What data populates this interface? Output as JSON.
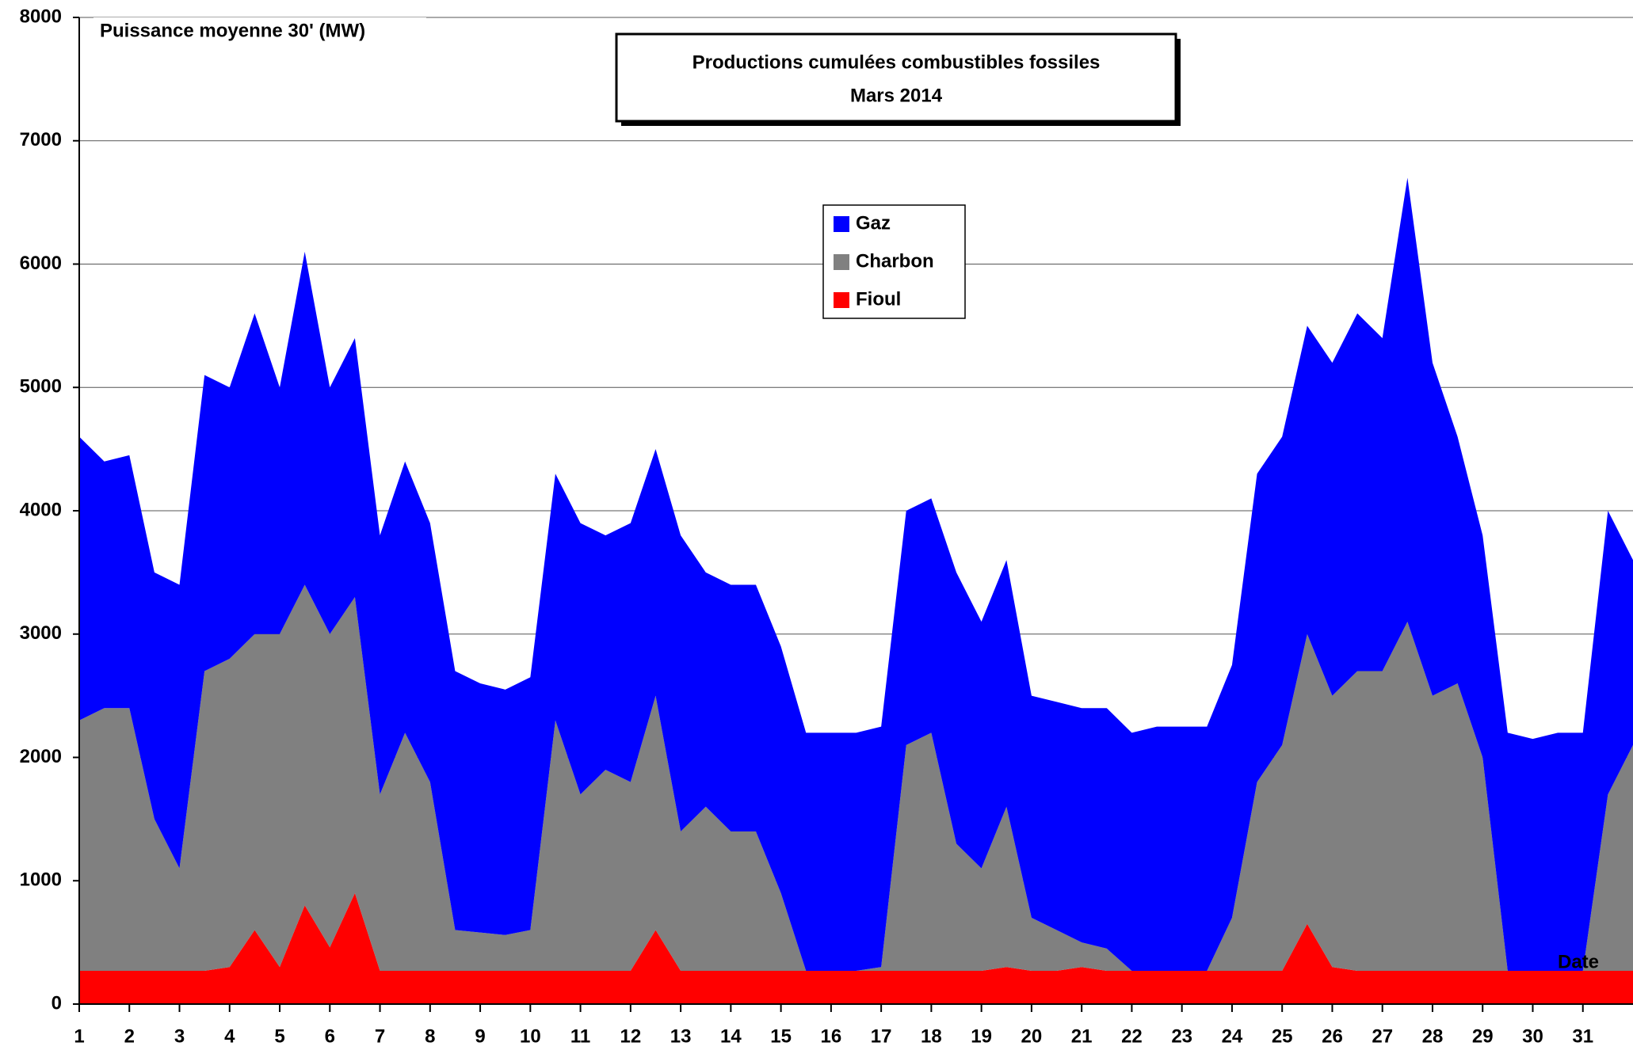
{
  "chart_data": {
    "type": "stacked_area",
    "title": [
      "Productions cumulées combustibles fossiles",
      "Mars 2014"
    ],
    "y_label": "Puissance moyenne 30' (MW)",
    "x_label": "Date",
    "x": [
      1,
      1.5,
      2,
      2.5,
      3,
      3.5,
      4,
      4.5,
      5,
      5.5,
      6,
      6.5,
      7,
      7.5,
      8,
      8.5,
      9,
      9.5,
      10,
      10.5,
      11,
      11.5,
      12,
      12.5,
      13,
      13.5,
      14,
      14.5,
      15,
      15.5,
      16,
      16.5,
      17,
      17.5,
      18,
      18.5,
      19,
      19.5,
      20,
      20.5,
      21,
      21.5,
      22,
      22.5,
      23,
      23.5,
      24,
      24.5,
      25,
      25.5,
      26,
      26.5,
      27,
      27.5,
      28,
      28.5,
      29,
      29.5,
      30,
      30.5,
      31,
      31.5,
      32
    ],
    "series": [
      {
        "name": "Fioul",
        "color": "#ff0000",
        "values": [
          270,
          270,
          270,
          270,
          270,
          270,
          300,
          600,
          300,
          800,
          460,
          900,
          270,
          270,
          270,
          270,
          270,
          270,
          270,
          270,
          270,
          270,
          270,
          600,
          270,
          270,
          270,
          270,
          270,
          270,
          270,
          270,
          270,
          270,
          270,
          270,
          270,
          300,
          270,
          270,
          300,
          270,
          270,
          270,
          270,
          270,
          270,
          270,
          270,
          650,
          300,
          270,
          270,
          270,
          270,
          270,
          270,
          270,
          270,
          270,
          270,
          270,
          270
        ]
      },
      {
        "name": "Charbon",
        "color": "#808080",
        "values": [
          2030,
          2130,
          2130,
          1230,
          830,
          2430,
          2500,
          2400,
          2700,
          2600,
          2540,
          2400,
          1430,
          1930,
          1530,
          330,
          310,
          290,
          330,
          2030,
          1430,
          1630,
          1530,
          1900,
          1130,
          1330,
          1130,
          1130,
          630,
          0,
          0,
          0,
          30,
          1830,
          1930,
          1030,
          830,
          1300,
          430,
          330,
          200,
          180,
          0,
          0,
          0,
          0,
          430,
          1530,
          1830,
          2350,
          2200,
          2430,
          2430,
          2830,
          2230,
          2330,
          1730,
          0,
          0,
          0,
          0,
          1430,
          1830
        ]
      },
      {
        "name": "Gaz",
        "color": "#0000ff",
        "values": [
          2300,
          2000,
          2050,
          2000,
          2300,
          2400,
          2200,
          2600,
          2000,
          2700,
          2000,
          2100,
          2100,
          2200,
          2100,
          2100,
          2020,
          1990,
          2050,
          2000,
          2200,
          1900,
          2100,
          2000,
          2400,
          1900,
          2000,
          2000,
          2000,
          1930,
          1930,
          1930,
          1950,
          1900,
          1900,
          2200,
          2000,
          2000,
          1800,
          1850,
          1900,
          1950,
          1930,
          1980,
          1980,
          1980,
          2050,
          2500,
          2500,
          2500,
          2700,
          2900,
          2700,
          3600,
          2700,
          2000,
          1800,
          1930,
          1880,
          1930,
          1930,
          2300,
          1500
        ]
      }
    ],
    "xlim": [
      1,
      32
    ],
    "xticks": [
      1,
      2,
      3,
      4,
      5,
      6,
      7,
      8,
      9,
      10,
      11,
      12,
      13,
      14,
      15,
      16,
      17,
      18,
      19,
      20,
      21,
      22,
      23,
      24,
      25,
      26,
      27,
      28,
      29,
      30,
      31
    ],
    "ylim": [
      0,
      8000
    ],
    "yticks": [
      0,
      1000,
      2000,
      3000,
      4000,
      5000,
      6000,
      7000,
      8000
    ],
    "grid": true
  }
}
